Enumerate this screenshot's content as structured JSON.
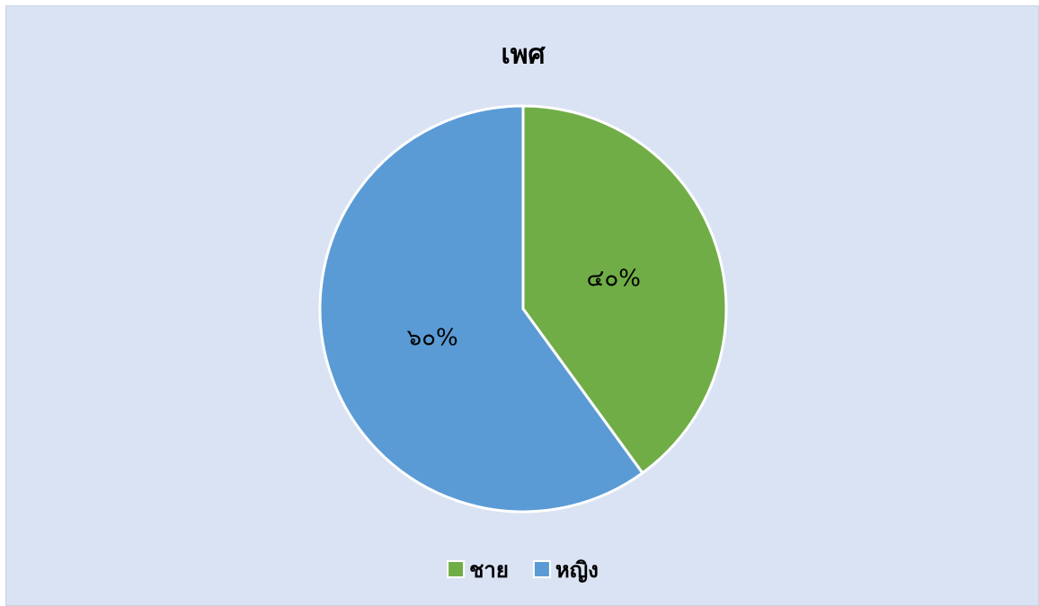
{
  "chart_data": {
    "type": "pie",
    "title": "เพศ",
    "categories": [
      "ชาย",
      "หญิง"
    ],
    "values": [
      40,
      60
    ],
    "value_labels": [
      "๔๐%",
      "๖๐%"
    ],
    "colors": [
      "#70ad47",
      "#5b9bd5"
    ],
    "legend": "bottom"
  }
}
